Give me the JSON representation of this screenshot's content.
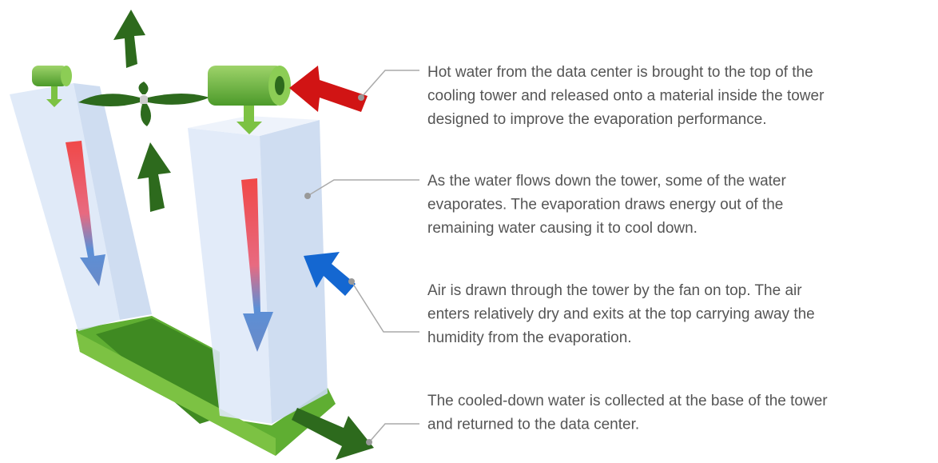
{
  "annotations": [
    {
      "lines": [
        "Hot water from the data center is brought to the top of the",
        "cooling tower and released onto a material inside the tower",
        "designed to improve the evaporation performance."
      ]
    },
    {
      "lines": [
        "As the water flows down the tower, some of the water",
        "evaporates. The evaporation draws energy out of the",
        "remaining water causing it to cool down."
      ]
    },
    {
      "lines": [
        "Air is drawn through the tower by the fan on top. The air",
        "enters relatively dry and exits at the top carrying away the",
        "humidity from the evaporation."
      ]
    },
    {
      "lines": [
        "The cooled-down water is collected at the base of the tower",
        "and returned to the data center."
      ]
    }
  ]
}
